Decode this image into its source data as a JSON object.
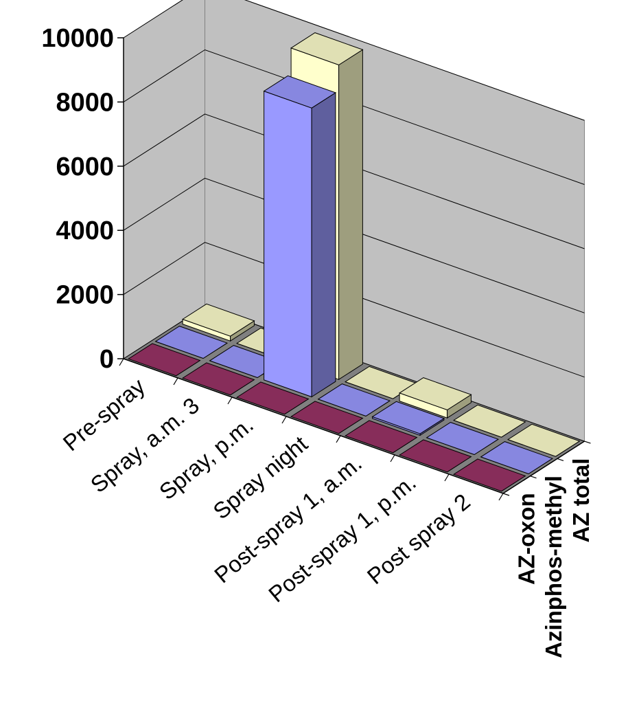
{
  "chart_data": {
    "type": "bar",
    "subtype": "3d-column",
    "title": "",
    "xlabel": "",
    "ylabel": "",
    "ylim": [
      0,
      10000
    ],
    "y_ticks": [
      "0",
      "2000",
      "4000",
      "6000",
      "8000",
      "10000"
    ],
    "grid": true,
    "categories": [
      "Pre-spray",
      "Spray, a.m. 3",
      "Spray, p.m.",
      "Spray night",
      "Post-spray 1, a.m.",
      "Post-spray 1, p.m.",
      "Post spray 2"
    ],
    "series": [
      {
        "name": "AZ-oxon",
        "color": "#993366",
        "values": [
          0,
          0,
          0,
          0,
          0,
          0,
          0
        ]
      },
      {
        "name": "Azinphos-methyl",
        "color": "#9999ff",
        "values": [
          0,
          0,
          9000,
          0,
          50,
          0,
          0
        ]
      },
      {
        "name": "AZ total",
        "color": "#ffffcc",
        "values": [
          150,
          0,
          9800,
          0,
          250,
          0,
          0
        ]
      }
    ]
  }
}
